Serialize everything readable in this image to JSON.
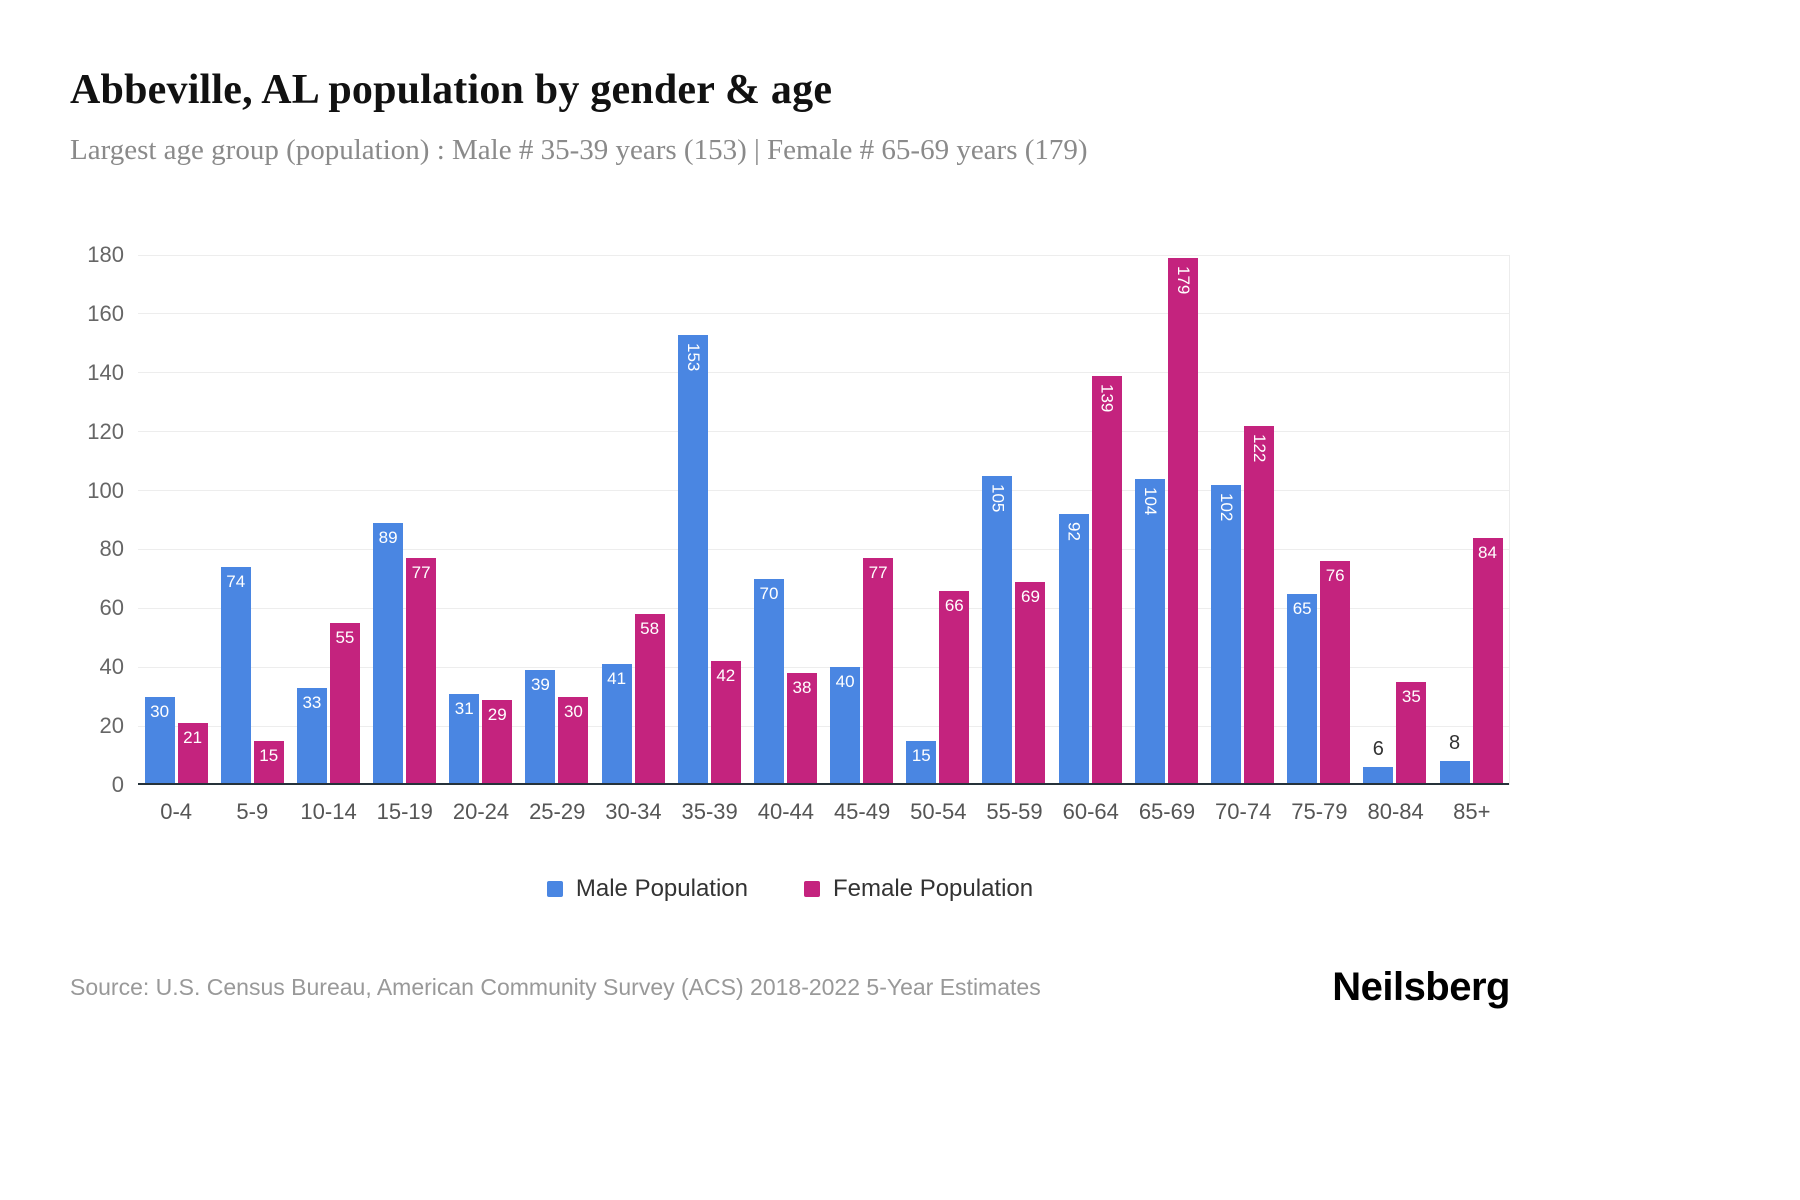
{
  "header": {
    "title": "Abbeville, AL population by gender & age",
    "subtitle": "Largest age group (population) : Male # 35-39 years (153) | Female # 65-69 years (179)"
  },
  "chart_data": {
    "type": "bar",
    "title": "Abbeville, AL population by gender & age",
    "categories": [
      "0-4",
      "5-9",
      "10-14",
      "15-19",
      "20-24",
      "25-29",
      "30-34",
      "35-39",
      "40-44",
      "45-49",
      "50-54",
      "55-59",
      "60-64",
      "65-69",
      "70-74",
      "75-79",
      "80-84",
      "85+"
    ],
    "series": [
      {
        "key": "male",
        "name": "Male Population",
        "color": "#4a86e2",
        "values": [
          30,
          74,
          33,
          89,
          31,
          39,
          41,
          153,
          70,
          40,
          15,
          105,
          92,
          104,
          102,
          65,
          6,
          8
        ]
      },
      {
        "key": "female",
        "name": "Female Population",
        "color": "#c4237e",
        "values": [
          21,
          15,
          55,
          77,
          29,
          30,
          58,
          42,
          38,
          77,
          66,
          69,
          139,
          179,
          122,
          76,
          35,
          84
        ]
      }
    ],
    "xlabel": "",
    "ylabel": "",
    "ylim": [
      0,
      180
    ],
    "yticks": [
      0,
      20,
      40,
      60,
      80,
      100,
      120,
      140,
      160,
      180
    ],
    "grid": true,
    "legend_position": "bottom"
  },
  "footer": {
    "source": "Source: U.S. Census Bureau, American Community Survey (ACS) 2018-2022 5-Year Estimates",
    "brand": "Neilsberg"
  }
}
